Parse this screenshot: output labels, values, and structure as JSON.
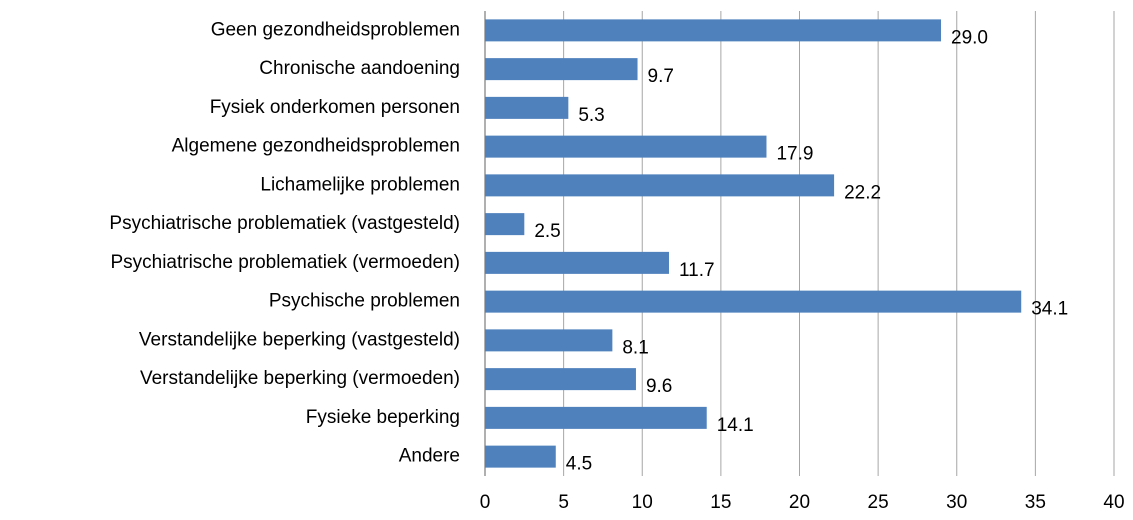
{
  "chart_data": {
    "type": "bar",
    "orientation": "horizontal",
    "categories": [
      "Geen gezondheidsproblemen",
      "Chronische aandoening",
      "Fysiek onderkomen personen",
      "Algemene gezondheidsproblemen",
      "Lichamelijke problemen",
      "Psychiatrische problematiek (vastgesteld)",
      "Psychiatrische problematiek (vermoeden)",
      "Psychische problemen",
      "Verstandelijke beperking (vastgesteld)",
      "Verstandelijke beperking (vermoeden)",
      "Fysieke beperking",
      "Andere"
    ],
    "values": [
      29.0,
      9.7,
      5.3,
      17.9,
      22.2,
      2.5,
      11.7,
      34.1,
      8.1,
      9.6,
      14.1,
      4.5
    ],
    "value_labels": [
      "29.0",
      "9.7",
      "5.3",
      "17.9",
      "22.2",
      "2.5",
      "11.7",
      "34.1",
      "8.1",
      "9.6",
      "14.1",
      "4.5"
    ],
    "color": "#4f81bd",
    "xlim": [
      0,
      40
    ],
    "xticks": [
      0,
      5,
      10,
      15,
      20,
      25,
      30,
      35,
      40
    ],
    "grid": true
  }
}
